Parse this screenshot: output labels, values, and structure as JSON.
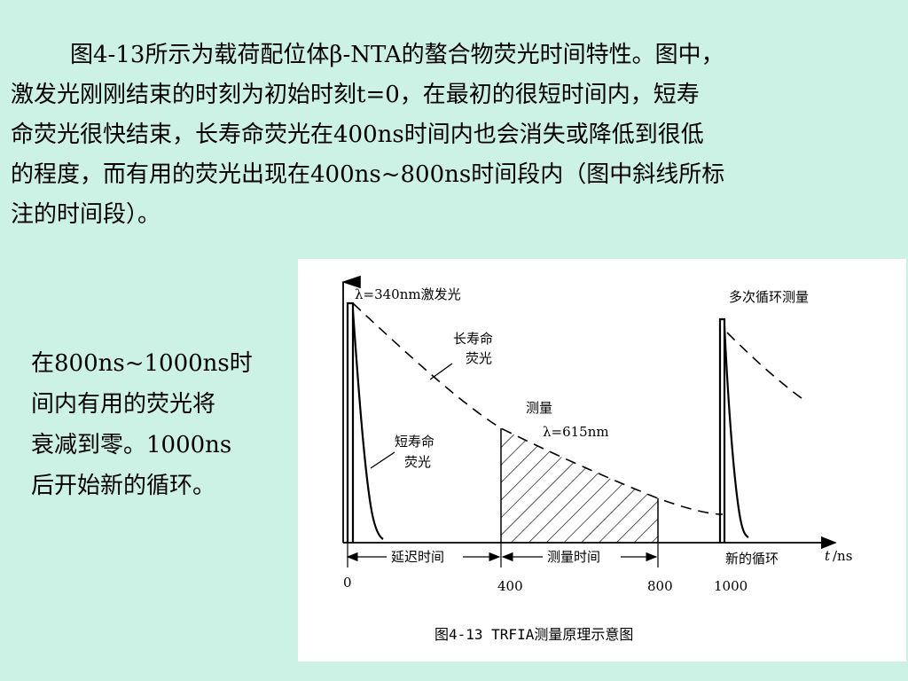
{
  "paragraph": {
    "lines": [
      "图4-13所示为载荷配位体β-NTA的螯合物荧光时间特性。图中，",
      "激发光刚刚结束的时刻为初始时刻t=0，在最初的很短时间内，短寿",
      "命荧光很快结束，长寿命荧光在400ns时间内也会消失或降低到很低",
      "的程度，而有用的荧光出现在400ns~800ns时间段内（图中斜线所标",
      "注的时间段）。"
    ]
  },
  "side_text": {
    "lines": [
      "在800ns~1000ns时",
      "间内有用的荧光将",
      "衰减到零。1000ns",
      "后开始新的循环。"
    ]
  },
  "diagram": {
    "excitation_label": "λ=340nm激发光",
    "repeat_label": "多次循环测量",
    "long_life_label_1": "长寿命",
    "long_life_label_2": "荧光",
    "short_life_label_1": "短寿命",
    "short_life_label_2": "荧光",
    "measure_label": "测量",
    "measure_wavelength": "λ=615nm",
    "delay_time_label": "延迟时间",
    "measure_time_label": "测量时间",
    "new_cycle_label": "新的循环",
    "axis_label_t": "t",
    "axis_label_unit": "/ns",
    "ticks": [
      "0",
      "400",
      "800",
      "1000"
    ],
    "caption": "图4-13 TRFIA测量原理示意图"
  }
}
